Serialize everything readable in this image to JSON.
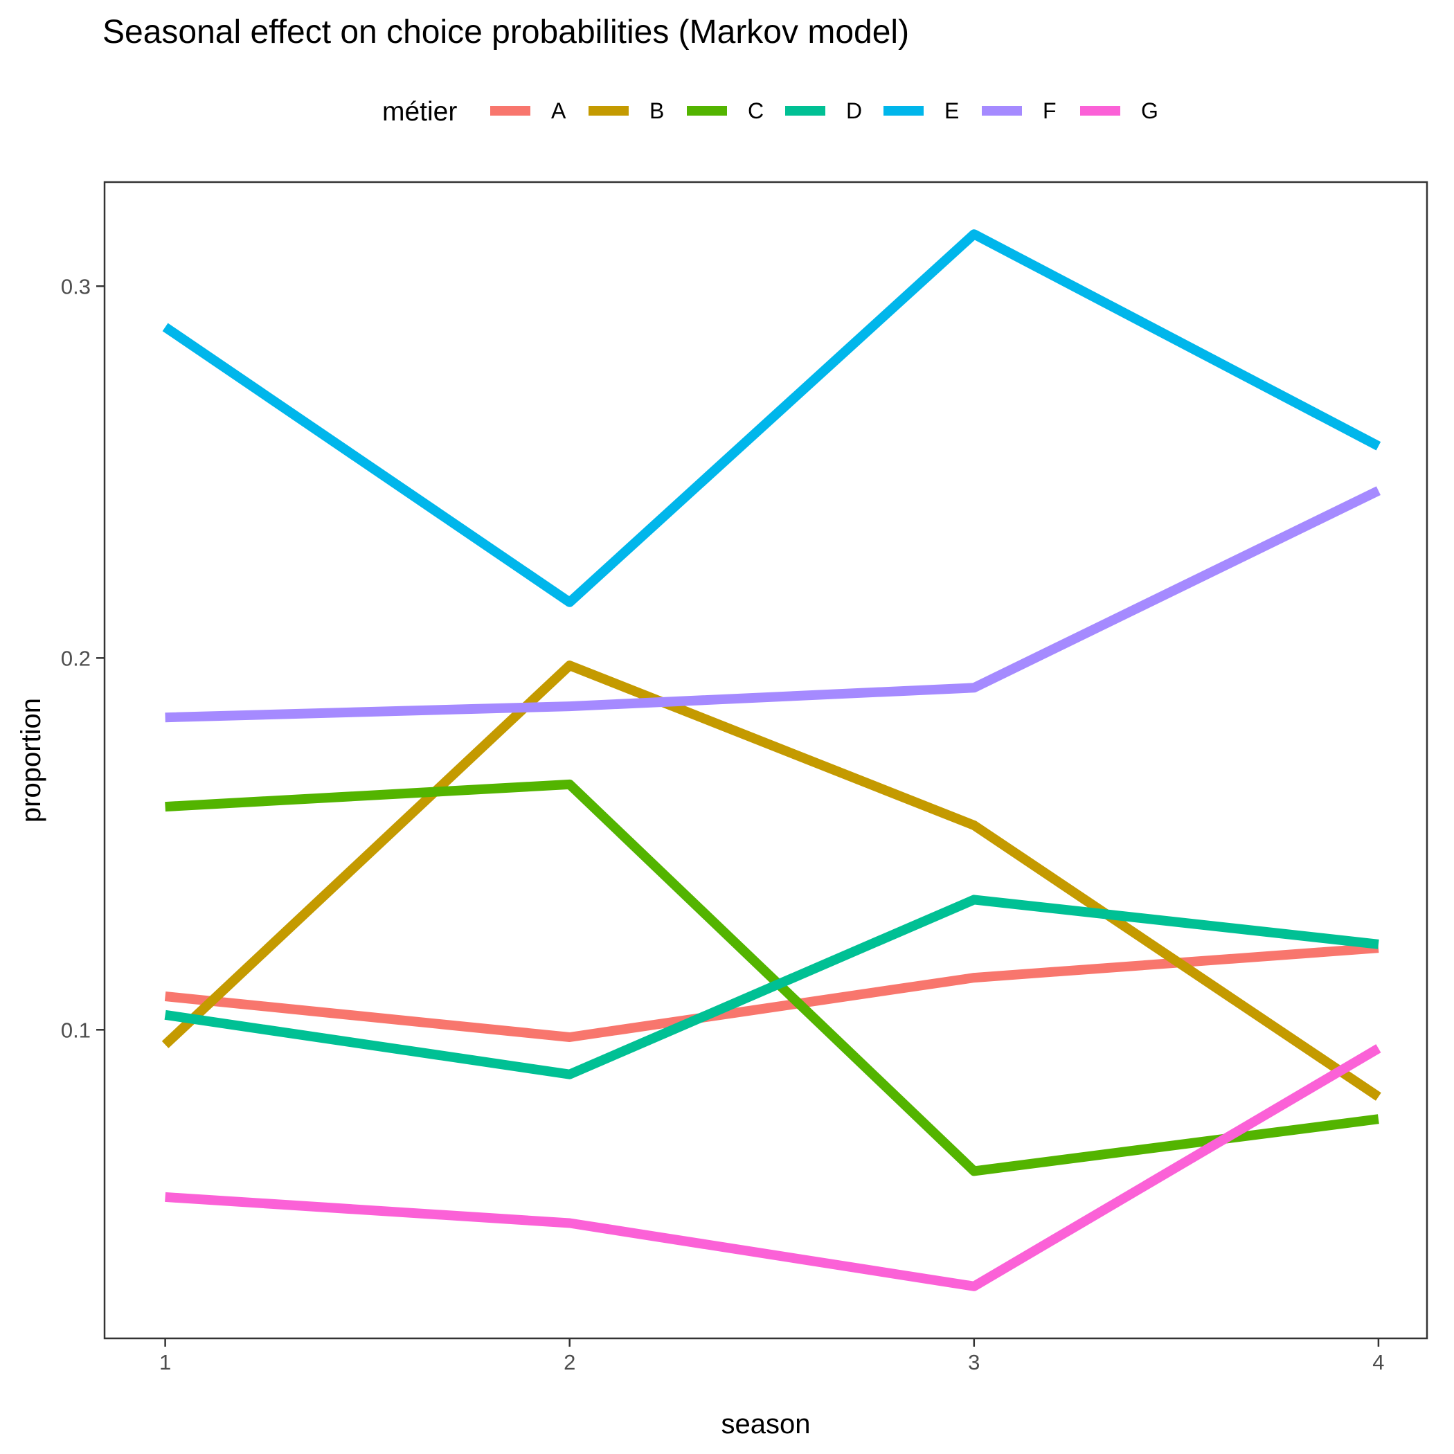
{
  "chart_data": {
    "type": "line",
    "title": "Seasonal effect on choice probabilities (Markov model)",
    "xlabel": "season",
    "ylabel": "proportion",
    "x": [
      1,
      2,
      3,
      4
    ],
    "xlim": [
      0.85,
      4.12
    ],
    "ylim": [
      0.017,
      0.328
    ],
    "xticks": [
      1,
      2,
      3,
      4
    ],
    "yticks": [
      0.1,
      0.2,
      0.3
    ],
    "grid": false,
    "legend": {
      "title": "métier",
      "position": "top"
    },
    "series": [
      {
        "name": "A",
        "color": "#F8766D",
        "values": [
          0.109,
          0.098,
          0.114,
          0.122
        ]
      },
      {
        "name": "B",
        "color": "#C49A00",
        "values": [
          0.096,
          0.198,
          0.155,
          0.082
        ]
      },
      {
        "name": "C",
        "color": "#53B400",
        "values": [
          0.16,
          0.166,
          0.062,
          0.076
        ]
      },
      {
        "name": "D",
        "color": "#00C094",
        "values": [
          0.104,
          0.088,
          0.135,
          0.123
        ]
      },
      {
        "name": "E",
        "color": "#00B6EB",
        "values": [
          0.289,
          0.215,
          0.314,
          0.257
        ]
      },
      {
        "name": "F",
        "color": "#A58AFF",
        "values": [
          0.184,
          0.187,
          0.192,
          0.245
        ]
      },
      {
        "name": "G",
        "color": "#FB61D7",
        "values": [
          0.055,
          0.048,
          0.031,
          0.095
        ]
      }
    ]
  }
}
